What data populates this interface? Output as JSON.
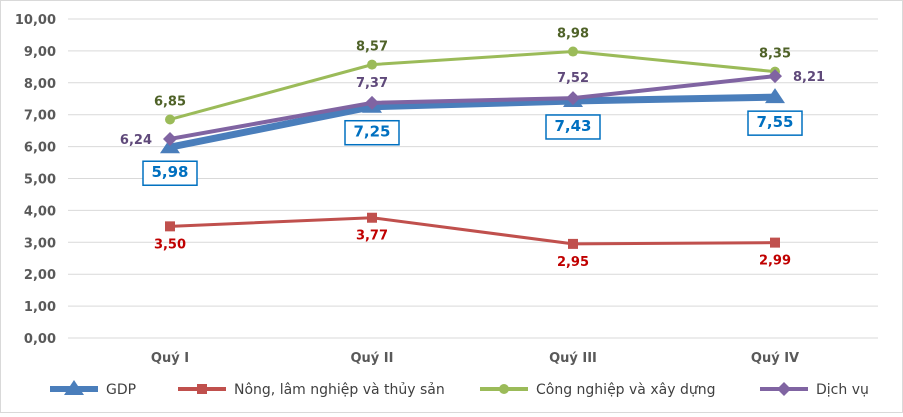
{
  "chart_data": {
    "type": "line",
    "categories": [
      "Quý I",
      "Quý II",
      "Quý III",
      "Quý IV"
    ],
    "ylim": [
      0,
      10
    ],
    "yticks": [
      "0,00",
      "1,00",
      "2,00",
      "3,00",
      "4,00",
      "5,00",
      "6,00",
      "7,00",
      "8,00",
      "9,00",
      "10,00"
    ],
    "grid": true,
    "legend_position": "bottom",
    "series": [
      {
        "name": "GDP",
        "values": [
          5.98,
          7.25,
          7.43,
          7.55
        ],
        "labels": [
          "5,98",
          "7,25",
          "7,43",
          "7,55"
        ],
        "color": "#4a7ebb",
        "marker": "triangle"
      },
      {
        "name": "Nông, lâm nghiệp và thủy sản",
        "values": [
          3.5,
          3.77,
          2.95,
          2.99
        ],
        "labels": [
          "3,50",
          "3,77",
          "2,95",
          "2,99"
        ],
        "color": "#c0504d",
        "marker": "square"
      },
      {
        "name": "Công nghiệp và xây dựng",
        "values": [
          6.85,
          8.57,
          8.98,
          8.35
        ],
        "labels": [
          "6,85",
          "8,57",
          "8,98",
          "8,35"
        ],
        "color": "#9bbb59",
        "marker": "circle"
      },
      {
        "name": "Dịch vụ",
        "values": [
          6.24,
          7.37,
          7.52,
          8.21
        ],
        "labels": [
          "6,24",
          "7,37",
          "7,52",
          "8,21"
        ],
        "color": "#8064a2",
        "marker": "diamond"
      }
    ]
  }
}
